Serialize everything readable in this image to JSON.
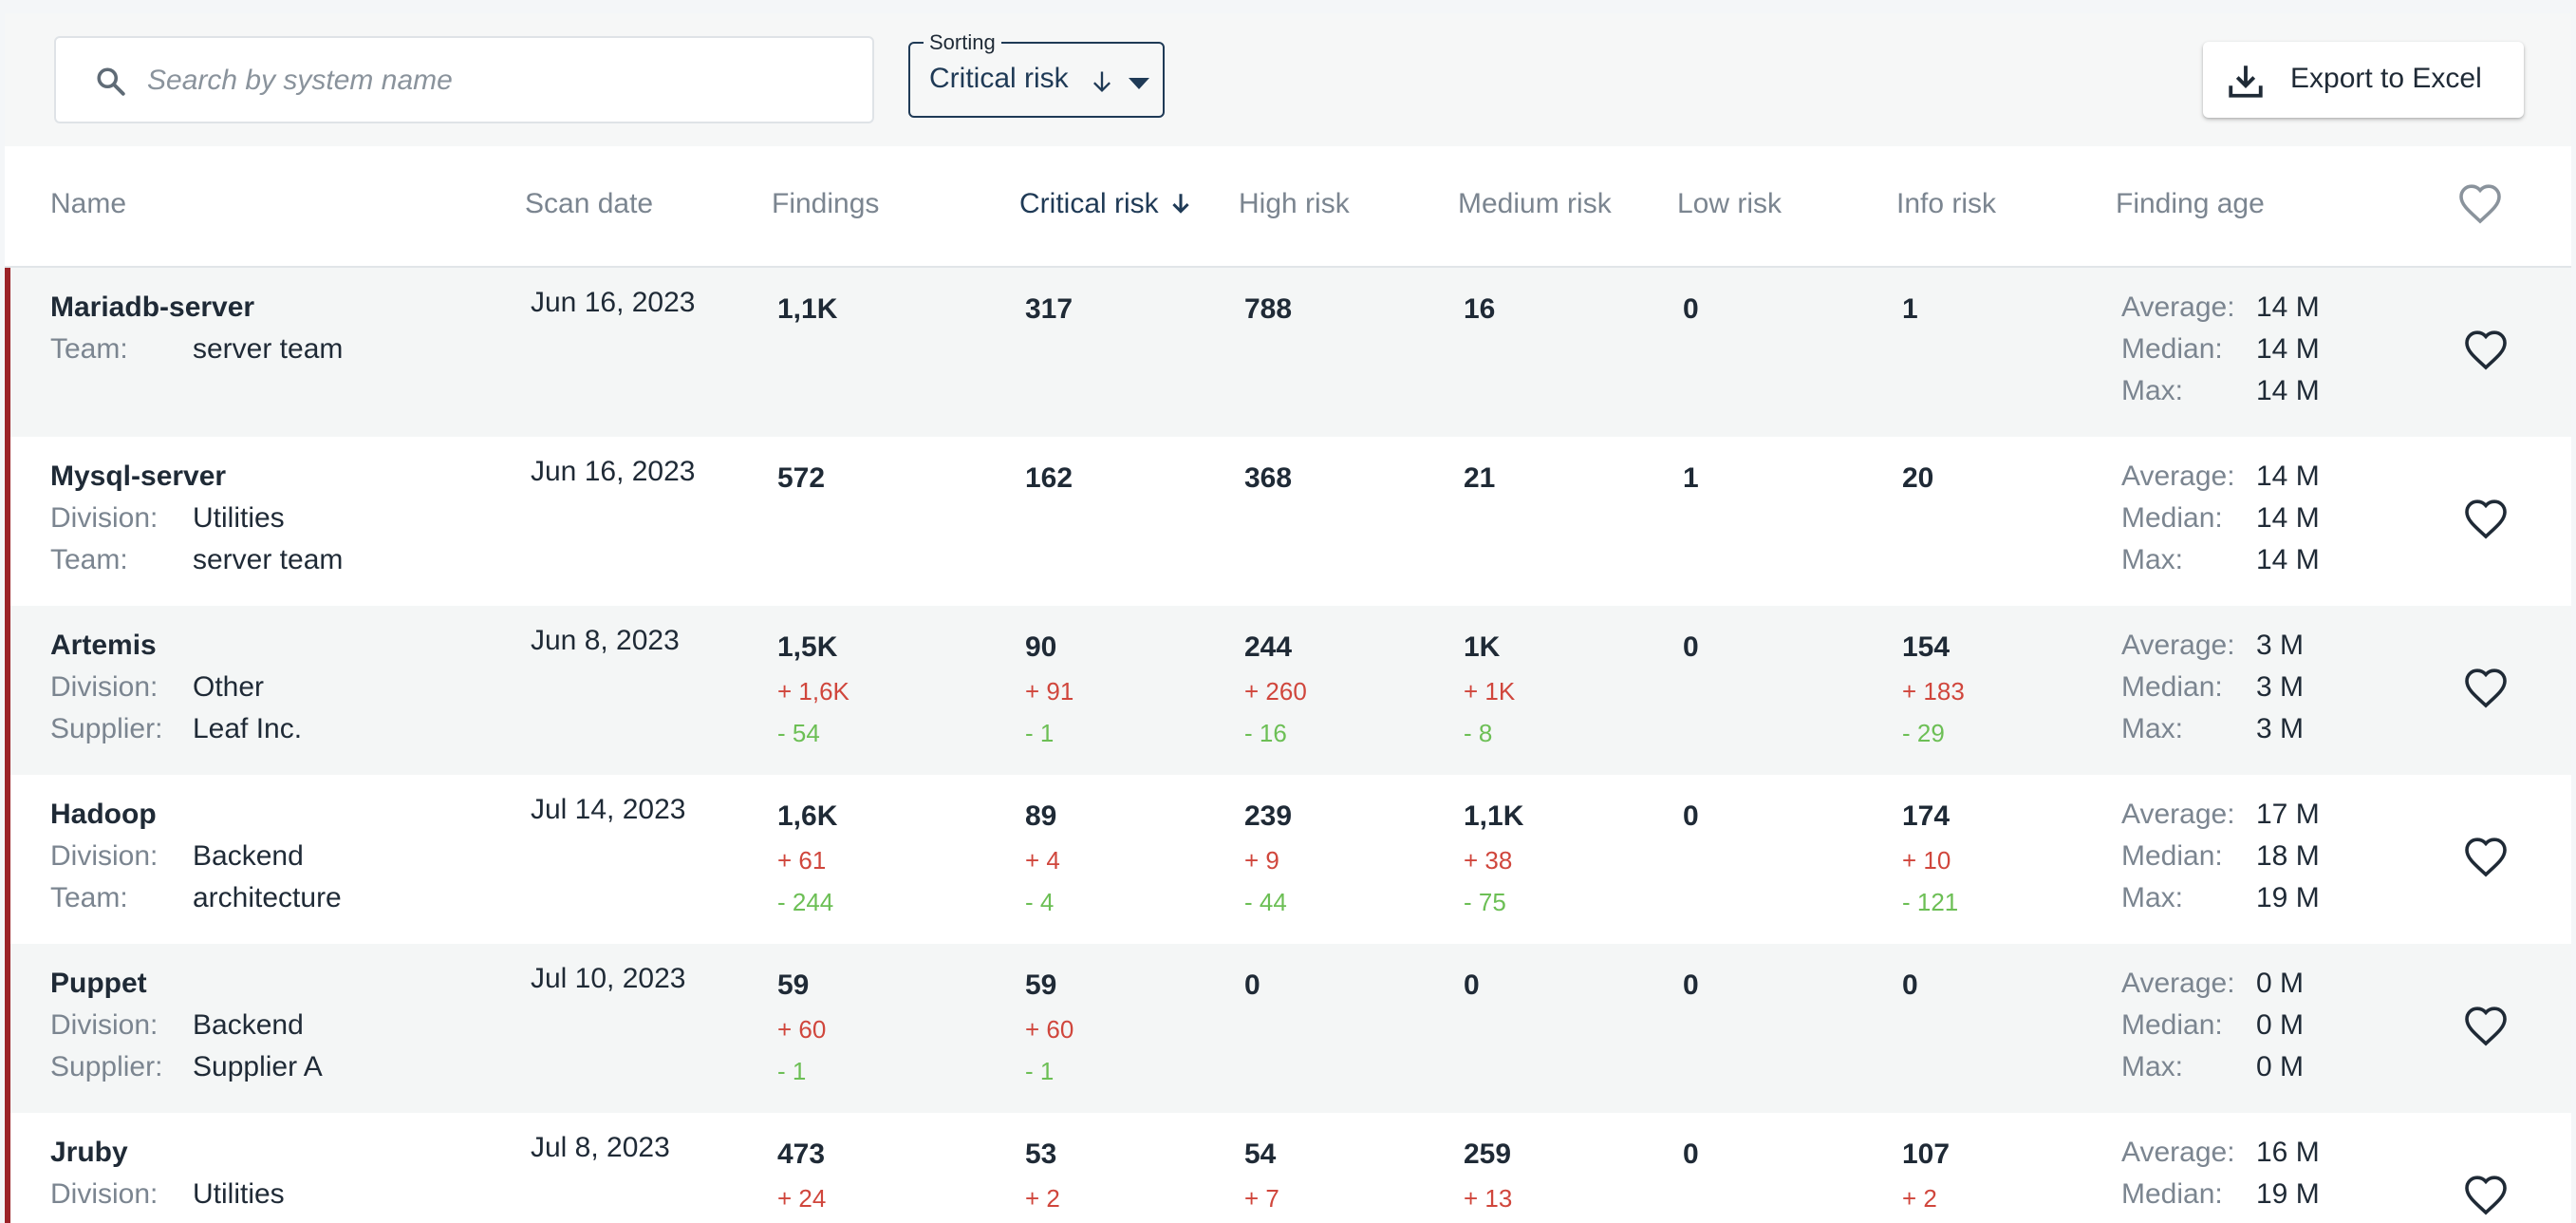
{
  "search": {
    "placeholder": "Search by system name",
    "value": ""
  },
  "sorting": {
    "legend": "Sorting",
    "value": "Critical risk"
  },
  "export": {
    "label": "Export to Excel"
  },
  "columns": {
    "name": "Name",
    "scan_date": "Scan date",
    "findings": "Findings",
    "critical": "Critical risk",
    "high": "High risk",
    "medium": "Medium risk",
    "low": "Low risk",
    "info": "Info risk",
    "age": "Finding age"
  },
  "labels": {
    "division": "Division:",
    "team": "Team:",
    "supplier": "Supplier:",
    "average": "Average:",
    "median": "Median:",
    "max": "Max:"
  },
  "colors": {
    "accent": "#1f3a56",
    "row_marker": "#9b2328",
    "increase": "#d0463c",
    "decrease": "#6cbf55"
  },
  "rows": [
    {
      "name": "Mariadb-server",
      "meta": [
        {
          "k": "Team:",
          "v": "server team"
        }
      ],
      "scan_date": "Jun 16, 2023",
      "findings": {
        "v": "1,1K"
      },
      "critical": {
        "v": "317"
      },
      "high": {
        "v": "788"
      },
      "medium": {
        "v": "16"
      },
      "low": {
        "v": "0"
      },
      "info": {
        "v": "1"
      },
      "age": {
        "average": "14 M",
        "median": "14 M",
        "max": "14 M"
      }
    },
    {
      "name": "Mysql-server",
      "meta": [
        {
          "k": "Division:",
          "v": "Utilities"
        },
        {
          "k": "Team:",
          "v": "server team"
        }
      ],
      "scan_date": "Jun 16, 2023",
      "findings": {
        "v": "572"
      },
      "critical": {
        "v": "162"
      },
      "high": {
        "v": "368"
      },
      "medium": {
        "v": "21"
      },
      "low": {
        "v": "1"
      },
      "info": {
        "v": "20"
      },
      "age": {
        "average": "14 M",
        "median": "14 M",
        "max": "14 M"
      }
    },
    {
      "name": "Artemis",
      "meta": [
        {
          "k": "Division:",
          "v": "Other"
        },
        {
          "k": "Supplier:",
          "v": "Leaf Inc."
        }
      ],
      "scan_date": "Jun 8, 2023",
      "findings": {
        "v": "1,5K",
        "inc": "+ 1,6K",
        "dec": "- 54"
      },
      "critical": {
        "v": "90",
        "inc": "+ 91",
        "dec": "- 1"
      },
      "high": {
        "v": "244",
        "inc": "+ 260",
        "dec": "- 16"
      },
      "medium": {
        "v": "1K",
        "inc": "+ 1K",
        "dec": "- 8"
      },
      "low": {
        "v": "0"
      },
      "info": {
        "v": "154",
        "inc": "+ 183",
        "dec": "- 29"
      },
      "age": {
        "average": "3 M",
        "median": "3 M",
        "max": "3 M"
      }
    },
    {
      "name": "Hadoop",
      "meta": [
        {
          "k": "Division:",
          "v": "Backend"
        },
        {
          "k": "Team:",
          "v": "architecture"
        }
      ],
      "scan_date": "Jul 14, 2023",
      "findings": {
        "v": "1,6K",
        "inc": "+ 61",
        "dec": "- 244"
      },
      "critical": {
        "v": "89",
        "inc": "+ 4",
        "dec": "- 4"
      },
      "high": {
        "v": "239",
        "inc": "+ 9",
        "dec": "- 44"
      },
      "medium": {
        "v": "1,1K",
        "inc": "+ 38",
        "dec": "- 75"
      },
      "low": {
        "v": "0"
      },
      "info": {
        "v": "174",
        "inc": "+ 10",
        "dec": "- 121"
      },
      "age": {
        "average": "17 M",
        "median": "18 M",
        "max": "19 M"
      }
    },
    {
      "name": "Puppet",
      "meta": [
        {
          "k": "Division:",
          "v": "Backend"
        },
        {
          "k": "Supplier:",
          "v": "Supplier A"
        }
      ],
      "scan_date": "Jul 10, 2023",
      "findings": {
        "v": "59",
        "inc": "+ 60",
        "dec": "- 1"
      },
      "critical": {
        "v": "59",
        "inc": "+ 60",
        "dec": "- 1"
      },
      "high": {
        "v": "0"
      },
      "medium": {
        "v": "0"
      },
      "low": {
        "v": "0"
      },
      "info": {
        "v": "0"
      },
      "age": {
        "average": "0 M",
        "median": "0 M",
        "max": "0 M"
      }
    },
    {
      "name": "Jruby",
      "meta": [
        {
          "k": "Division:",
          "v": "Utilities"
        }
      ],
      "scan_date": "Jul 8, 2023",
      "findings": {
        "v": "473",
        "inc": "+ 24"
      },
      "critical": {
        "v": "53",
        "inc": "+ 2"
      },
      "high": {
        "v": "54",
        "inc": "+ 7"
      },
      "medium": {
        "v": "259",
        "inc": "+ 13"
      },
      "low": {
        "v": "0"
      },
      "info": {
        "v": "107",
        "inc": "+ 2"
      },
      "age": {
        "average": "16 M",
        "median": "19 M"
      }
    }
  ]
}
